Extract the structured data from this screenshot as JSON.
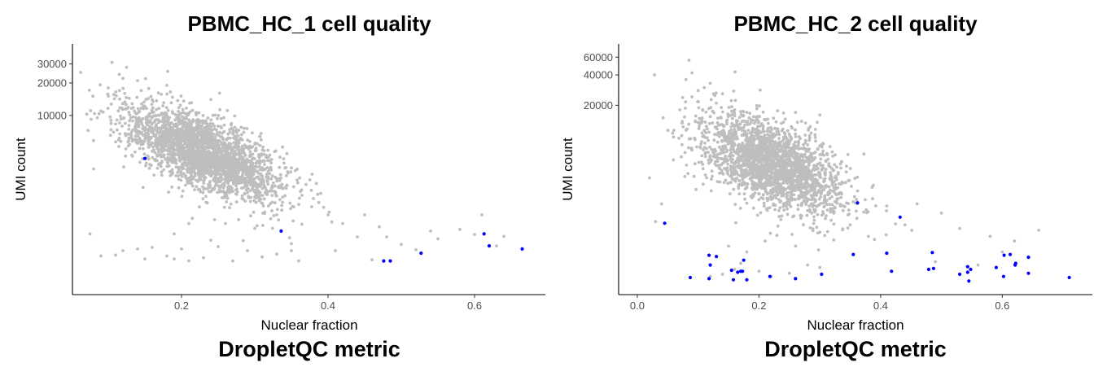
{
  "chart_data": [
    {
      "type": "scatter",
      "title": "PBMC_HC_1  cell quality",
      "subtitle": "DropletQC metric",
      "xlabel": "Nuclear fraction",
      "ylabel": "UMI count",
      "y_scale": "log",
      "xlim": [
        0.06,
        0.69
      ],
      "ylim": [
        270,
        40000
      ],
      "x_ticks": [
        0.2,
        0.4,
        0.6
      ],
      "x_tick_labels": [
        "0.2",
        "0.4",
        "0.6"
      ],
      "y_ticks": [
        10000,
        20000,
        30000
      ],
      "y_tick_labels": [
        "10000",
        "20000",
        "30000"
      ],
      "colors": {
        "cell": "#bebebe",
        "flagged": "#0000ff"
      },
      "grid": false,
      "cloud": {
        "center_x": 0.23,
        "center_umi": 4500,
        "n_points": 2600,
        "spread_x": 0.045,
        "slope": -2.6,
        "spread_log": 0.16
      },
      "series": [
        {
          "color": "#bebebe",
          "points": [
            [
              0.075,
              800
            ],
            [
              0.08,
              3200
            ],
            [
              0.085,
              9500
            ],
            [
              0.09,
              11000
            ],
            [
              0.1,
              18000
            ],
            [
              0.105,
              31000
            ],
            [
              0.115,
              24000
            ],
            [
              0.12,
              22000
            ],
            [
              0.125,
              28000
            ],
            [
              0.14,
              21000
            ],
            [
              0.145,
              17000
            ],
            [
              0.155,
              10000
            ],
            [
              0.16,
              14000
            ],
            [
              0.18,
              19000
            ],
            [
              0.09,
              500
            ],
            [
              0.11,
              510
            ],
            [
              0.12,
              560
            ],
            [
              0.14,
              580
            ],
            [
              0.15,
              470
            ],
            [
              0.16,
              600
            ],
            [
              0.18,
              500
            ],
            [
              0.19,
              470
            ],
            [
              0.2,
              580
            ],
            [
              0.21,
              450
            ],
            [
              0.23,
              480
            ],
            [
              0.25,
              610
            ],
            [
              0.27,
              450
            ],
            [
              0.29,
              560
            ],
            [
              0.31,
              490
            ],
            [
              0.33,
              520
            ],
            [
              0.35,
              560
            ],
            [
              0.36,
              450
            ],
            [
              0.19,
              800
            ],
            [
              0.21,
              1000
            ],
            [
              0.24,
              700
            ],
            [
              0.26,
              1000
            ],
            [
              0.3,
              900
            ],
            [
              0.33,
              1200
            ],
            [
              0.36,
              1500
            ],
            [
              0.38,
              1700
            ],
            [
              0.4,
              1200
            ],
            [
              0.42,
              1000
            ],
            [
              0.44,
              750
            ],
            [
              0.47,
              930
            ],
            [
              0.41,
              560
            ],
            [
              0.46,
              460
            ],
            [
              0.48,
              750
            ],
            [
              0.52,
              570
            ],
            [
              0.54,
              850
            ],
            [
              0.55,
              720
            ],
            [
              0.58,
              880
            ],
            [
              0.6,
              790
            ],
            [
              0.61,
              1200
            ],
            [
              0.63,
              620
            ],
            [
              0.64,
              760
            ],
            [
              0.45,
              1200
            ],
            [
              0.5,
              640
            ],
            [
              0.37,
              2300
            ],
            [
              0.39,
              1900
            ],
            [
              0.35,
              650
            ]
          ]
        },
        {
          "color": "#0000ff",
          "points": [
            [
              0.15,
              4000
            ],
            [
              0.336,
              850
            ],
            [
              0.476,
              450
            ],
            [
              0.485,
              450
            ],
            [
              0.527,
              530
            ],
            [
              0.613,
              800
            ],
            [
              0.62,
              620
            ],
            [
              0.665,
              580
            ]
          ]
        }
      ]
    },
    {
      "type": "scatter",
      "title": "PBMC_HC_2  cell quality",
      "subtitle": "DropletQC metric",
      "xlabel": "Nuclear fraction",
      "ylabel": "UMI count",
      "y_scale": "log",
      "xlim": [
        -0.02,
        0.74
      ],
      "ylim": [
        330,
        70000
      ],
      "x_ticks": [
        0.0,
        0.2,
        0.4,
        0.6
      ],
      "x_tick_labels": [
        "0.0",
        "0.2",
        "0.4",
        "0.6"
      ],
      "y_ticks": [
        20000,
        40000,
        60000
      ],
      "y_tick_labels": [
        "20000",
        "40000",
        "60000"
      ],
      "colors": {
        "cell": "#bebebe",
        "flagged": "#0000ff"
      },
      "grid": false,
      "cloud": {
        "center_x": 0.22,
        "center_umi": 5200,
        "n_points": 2300,
        "spread_x": 0.05,
        "slope": -2.3,
        "spread_log": 0.2
      },
      "series": [
        {
          "color": "#bebebe",
          "points": [
            [
              0.02,
              3800
            ],
            [
              0.03,
              1400
            ],
            [
              0.04,
              2100
            ],
            [
              0.07,
              18000
            ],
            [
              0.08,
              36000
            ],
            [
              0.085,
              56000
            ],
            [
              0.09,
              42000
            ],
            [
              0.1,
              28000
            ],
            [
              0.11,
              30000
            ],
            [
              0.12,
              33000
            ],
            [
              0.13,
              21000
            ],
            [
              0.14,
              26000
            ],
            [
              0.16,
              18000
            ],
            [
              0.18,
              17000
            ],
            [
              0.12,
              400
            ],
            [
              0.14,
              420
            ],
            [
              0.16,
              470
            ],
            [
              0.17,
              540
            ],
            [
              0.2,
              450
            ],
            [
              0.22,
              400
            ],
            [
              0.25,
              430
            ],
            [
              0.28,
              520
            ],
            [
              0.3,
              490
            ],
            [
              0.15,
              800
            ],
            [
              0.18,
              700
            ],
            [
              0.21,
              900
            ],
            [
              0.26,
              800
            ],
            [
              0.3,
              1100
            ],
            [
              0.35,
              1300
            ],
            [
              0.38,
              1000
            ],
            [
              0.41,
              2000
            ],
            [
              0.44,
              1300
            ],
            [
              0.46,
              2100
            ],
            [
              0.5,
              1700
            ],
            [
              0.53,
              1200
            ],
            [
              0.58,
              1000
            ],
            [
              0.62,
              900
            ],
            [
              0.66,
              1150
            ],
            [
              0.56,
              520
            ],
            [
              0.6,
              700
            ],
            [
              0.49,
              560
            ],
            [
              0.39,
              930
            ],
            [
              0.26,
              17000
            ],
            [
              0.3,
              16000
            ]
          ]
        },
        {
          "color": "#0000ff",
          "points": [
            [
              0.045,
              1350
            ],
            [
              0.087,
              390
            ],
            [
              0.118,
              380
            ],
            [
              0.118,
              650
            ],
            [
              0.12,
              520
            ],
            [
              0.13,
              630
            ],
            [
              0.155,
              460
            ],
            [
              0.158,
              370
            ],
            [
              0.165,
              440
            ],
            [
              0.17,
              450
            ],
            [
              0.173,
              450
            ],
            [
              0.175,
              580
            ],
            [
              0.18,
              370
            ],
            [
              0.218,
              400
            ],
            [
              0.26,
              380
            ],
            [
              0.303,
              420
            ],
            [
              0.355,
              660
            ],
            [
              0.362,
              2150
            ],
            [
              0.41,
              680
            ],
            [
              0.418,
              450
            ],
            [
              0.432,
              1550
            ],
            [
              0.479,
              470
            ],
            [
              0.487,
              480
            ],
            [
              0.485,
              690
            ],
            [
              0.53,
              420
            ],
            [
              0.543,
              440
            ],
            [
              0.545,
              360
            ],
            [
              0.543,
              500
            ],
            [
              0.548,
              470
            ],
            [
              0.59,
              490
            ],
            [
              0.602,
              400
            ],
            [
              0.603,
              650
            ],
            [
              0.613,
              660
            ],
            [
              0.621,
              520
            ],
            [
              0.622,
              540
            ],
            [
              0.643,
              620
            ],
            [
              0.643,
              430
            ],
            [
              0.71,
              390
            ]
          ]
        }
      ]
    }
  ]
}
